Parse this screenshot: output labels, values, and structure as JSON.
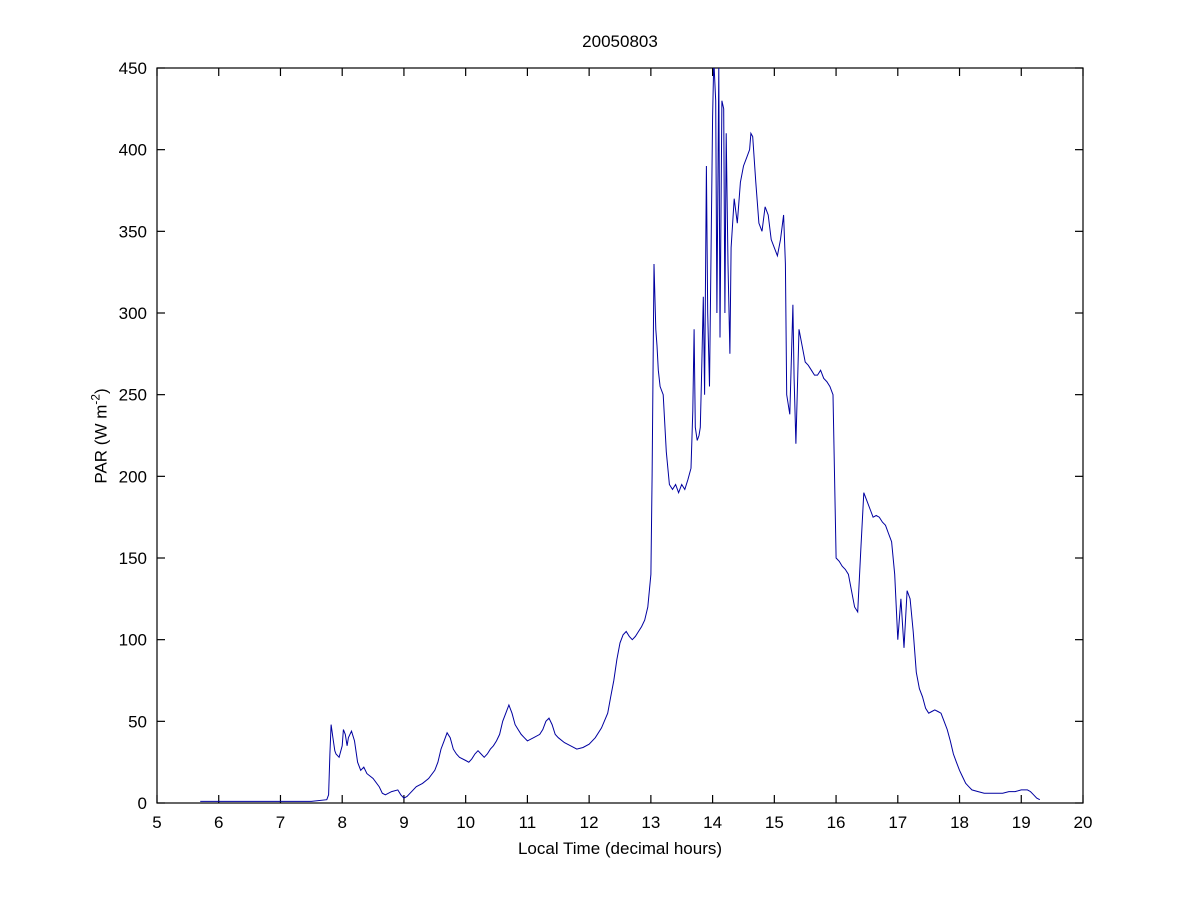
{
  "figure": {
    "background_color": "#ffffff"
  },
  "chart_data": {
    "type": "line",
    "title": "20050803",
    "xlabel": "Local Time (decimal hours)",
    "ylabel": "PAR (W m^-2)",
    "ylabel_parts": {
      "main": "PAR (W m",
      "sup": "-2",
      "end": ")"
    },
    "xlim": [
      5,
      20
    ],
    "ylim": [
      0,
      450
    ],
    "xticks": [
      5,
      6,
      7,
      8,
      9,
      10,
      11,
      12,
      13,
      14,
      15,
      16,
      17,
      18,
      19,
      20
    ],
    "yticks": [
      0,
      50,
      100,
      150,
      200,
      250,
      300,
      350,
      400,
      450
    ],
    "grid": false,
    "legend": null,
    "line_color": "#0000A0",
    "axis_color": "#000000",
    "series": [
      {
        "name": "PAR",
        "points": [
          [
            5.7,
            1
          ],
          [
            6.0,
            1
          ],
          [
            6.5,
            1
          ],
          [
            7.0,
            1
          ],
          [
            7.5,
            1
          ],
          [
            7.75,
            2
          ],
          [
            7.78,
            5
          ],
          [
            7.8,
            30
          ],
          [
            7.82,
            48
          ],
          [
            7.85,
            40
          ],
          [
            7.88,
            32
          ],
          [
            7.9,
            30
          ],
          [
            7.95,
            28
          ],
          [
            8.0,
            35
          ],
          [
            8.02,
            45
          ],
          [
            8.05,
            42
          ],
          [
            8.08,
            35
          ],
          [
            8.1,
            40
          ],
          [
            8.15,
            44
          ],
          [
            8.2,
            38
          ],
          [
            8.25,
            25
          ],
          [
            8.3,
            20
          ],
          [
            8.35,
            22
          ],
          [
            8.4,
            18
          ],
          [
            8.5,
            15
          ],
          [
            8.6,
            10
          ],
          [
            8.65,
            6
          ],
          [
            8.7,
            5
          ],
          [
            8.8,
            7
          ],
          [
            8.9,
            8
          ],
          [
            8.95,
            5
          ],
          [
            9.0,
            3
          ],
          [
            9.05,
            4
          ],
          [
            9.1,
            6
          ],
          [
            9.2,
            10
          ],
          [
            9.3,
            12
          ],
          [
            9.4,
            15
          ],
          [
            9.5,
            20
          ],
          [
            9.55,
            25
          ],
          [
            9.6,
            33
          ],
          [
            9.65,
            38
          ],
          [
            9.7,
            43
          ],
          [
            9.75,
            40
          ],
          [
            9.8,
            33
          ],
          [
            9.85,
            30
          ],
          [
            9.9,
            28
          ],
          [
            10.0,
            26
          ],
          [
            10.05,
            25
          ],
          [
            10.1,
            27
          ],
          [
            10.15,
            30
          ],
          [
            10.2,
            32
          ],
          [
            10.25,
            30
          ],
          [
            10.3,
            28
          ],
          [
            10.35,
            30
          ],
          [
            10.4,
            33
          ],
          [
            10.45,
            35
          ],
          [
            10.5,
            38
          ],
          [
            10.55,
            42
          ],
          [
            10.6,
            50
          ],
          [
            10.65,
            55
          ],
          [
            10.7,
            60
          ],
          [
            10.75,
            55
          ],
          [
            10.8,
            48
          ],
          [
            10.85,
            45
          ],
          [
            10.9,
            42
          ],
          [
            10.95,
            40
          ],
          [
            11.0,
            38
          ],
          [
            11.1,
            40
          ],
          [
            11.2,
            42
          ],
          [
            11.25,
            45
          ],
          [
            11.3,
            50
          ],
          [
            11.35,
            52
          ],
          [
            11.4,
            48
          ],
          [
            11.45,
            42
          ],
          [
            11.5,
            40
          ],
          [
            11.6,
            37
          ],
          [
            11.7,
            35
          ],
          [
            11.8,
            33
          ],
          [
            11.9,
            34
          ],
          [
            12.0,
            36
          ],
          [
            12.1,
            40
          ],
          [
            12.2,
            46
          ],
          [
            12.3,
            55
          ],
          [
            12.35,
            65
          ],
          [
            12.4,
            75
          ],
          [
            12.45,
            88
          ],
          [
            12.5,
            98
          ],
          [
            12.55,
            103
          ],
          [
            12.6,
            105
          ],
          [
            12.65,
            102
          ],
          [
            12.7,
            100
          ],
          [
            12.75,
            102
          ],
          [
            12.8,
            105
          ],
          [
            12.85,
            108
          ],
          [
            12.9,
            112
          ],
          [
            12.95,
            120
          ],
          [
            13.0,
            140
          ],
          [
            13.02,
            200
          ],
          [
            13.05,
            330
          ],
          [
            13.08,
            290
          ],
          [
            13.1,
            280
          ],
          [
            13.12,
            265
          ],
          [
            13.15,
            255
          ],
          [
            13.2,
            250
          ],
          [
            13.25,
            215
          ],
          [
            13.3,
            195
          ],
          [
            13.35,
            192
          ],
          [
            13.4,
            195
          ],
          [
            13.45,
            190
          ],
          [
            13.5,
            195
          ],
          [
            13.55,
            192
          ],
          [
            13.6,
            198
          ],
          [
            13.65,
            205
          ],
          [
            13.68,
            240
          ],
          [
            13.7,
            290
          ],
          [
            13.72,
            230
          ],
          [
            13.75,
            222
          ],
          [
            13.78,
            225
          ],
          [
            13.8,
            230
          ],
          [
            13.82,
            260
          ],
          [
            13.85,
            310
          ],
          [
            13.87,
            250
          ],
          [
            13.9,
            390
          ],
          [
            13.92,
            300
          ],
          [
            13.95,
            255
          ],
          [
            14.0,
            420
          ],
          [
            14.02,
            455
          ],
          [
            14.05,
            430
          ],
          [
            14.07,
            300
          ],
          [
            14.1,
            450
          ],
          [
            14.12,
            285
          ],
          [
            14.15,
            430
          ],
          [
            14.18,
            425
          ],
          [
            14.2,
            300
          ],
          [
            14.22,
            410
          ],
          [
            14.25,
            330
          ],
          [
            14.28,
            275
          ],
          [
            14.3,
            340
          ],
          [
            14.35,
            370
          ],
          [
            14.4,
            355
          ],
          [
            14.45,
            380
          ],
          [
            14.5,
            390
          ],
          [
            14.55,
            395
          ],
          [
            14.6,
            400
          ],
          [
            14.62,
            410
          ],
          [
            14.65,
            408
          ],
          [
            14.7,
            380
          ],
          [
            14.75,
            355
          ],
          [
            14.8,
            350
          ],
          [
            14.85,
            365
          ],
          [
            14.9,
            360
          ],
          [
            14.95,
            345
          ],
          [
            15.0,
            340
          ],
          [
            15.05,
            335
          ],
          [
            15.1,
            345
          ],
          [
            15.15,
            360
          ],
          [
            15.18,
            330
          ],
          [
            15.2,
            250
          ],
          [
            15.25,
            238
          ],
          [
            15.3,
            305
          ],
          [
            15.32,
            260
          ],
          [
            15.35,
            220
          ],
          [
            15.4,
            290
          ],
          [
            15.45,
            280
          ],
          [
            15.5,
            270
          ],
          [
            15.55,
            268
          ],
          [
            15.6,
            265
          ],
          [
            15.65,
            262
          ],
          [
            15.7,
            262
          ],
          [
            15.75,
            265
          ],
          [
            15.8,
            260
          ],
          [
            15.85,
            258
          ],
          [
            15.9,
            255
          ],
          [
            15.95,
            250
          ],
          [
            16.0,
            150
          ],
          [
            16.05,
            148
          ],
          [
            16.1,
            145
          ],
          [
            16.15,
            143
          ],
          [
            16.2,
            140
          ],
          [
            16.25,
            130
          ],
          [
            16.3,
            120
          ],
          [
            16.35,
            117
          ],
          [
            16.4,
            155
          ],
          [
            16.45,
            190
          ],
          [
            16.5,
            185
          ],
          [
            16.55,
            180
          ],
          [
            16.6,
            175
          ],
          [
            16.65,
            176
          ],
          [
            16.7,
            175
          ],
          [
            16.75,
            172
          ],
          [
            16.8,
            170
          ],
          [
            16.85,
            165
          ],
          [
            16.9,
            160
          ],
          [
            16.95,
            140
          ],
          [
            17.0,
            100
          ],
          [
            17.05,
            125
          ],
          [
            17.1,
            95
          ],
          [
            17.15,
            130
          ],
          [
            17.2,
            125
          ],
          [
            17.25,
            105
          ],
          [
            17.3,
            80
          ],
          [
            17.35,
            70
          ],
          [
            17.4,
            65
          ],
          [
            17.45,
            58
          ],
          [
            17.5,
            55
          ],
          [
            17.55,
            56
          ],
          [
            17.6,
            57
          ],
          [
            17.65,
            56
          ],
          [
            17.7,
            55
          ],
          [
            17.75,
            50
          ],
          [
            17.8,
            45
          ],
          [
            17.85,
            38
          ],
          [
            17.9,
            30
          ],
          [
            17.95,
            25
          ],
          [
            18.0,
            20
          ],
          [
            18.05,
            16
          ],
          [
            18.1,
            12
          ],
          [
            18.15,
            10
          ],
          [
            18.2,
            8
          ],
          [
            18.3,
            7
          ],
          [
            18.4,
            6
          ],
          [
            18.5,
            6
          ],
          [
            18.6,
            6
          ],
          [
            18.7,
            6
          ],
          [
            18.8,
            7
          ],
          [
            18.9,
            7
          ],
          [
            19.0,
            8
          ],
          [
            19.05,
            8
          ],
          [
            19.1,
            8
          ],
          [
            19.15,
            7
          ],
          [
            19.2,
            5
          ],
          [
            19.25,
            3
          ],
          [
            19.3,
            2
          ]
        ]
      }
    ]
  }
}
